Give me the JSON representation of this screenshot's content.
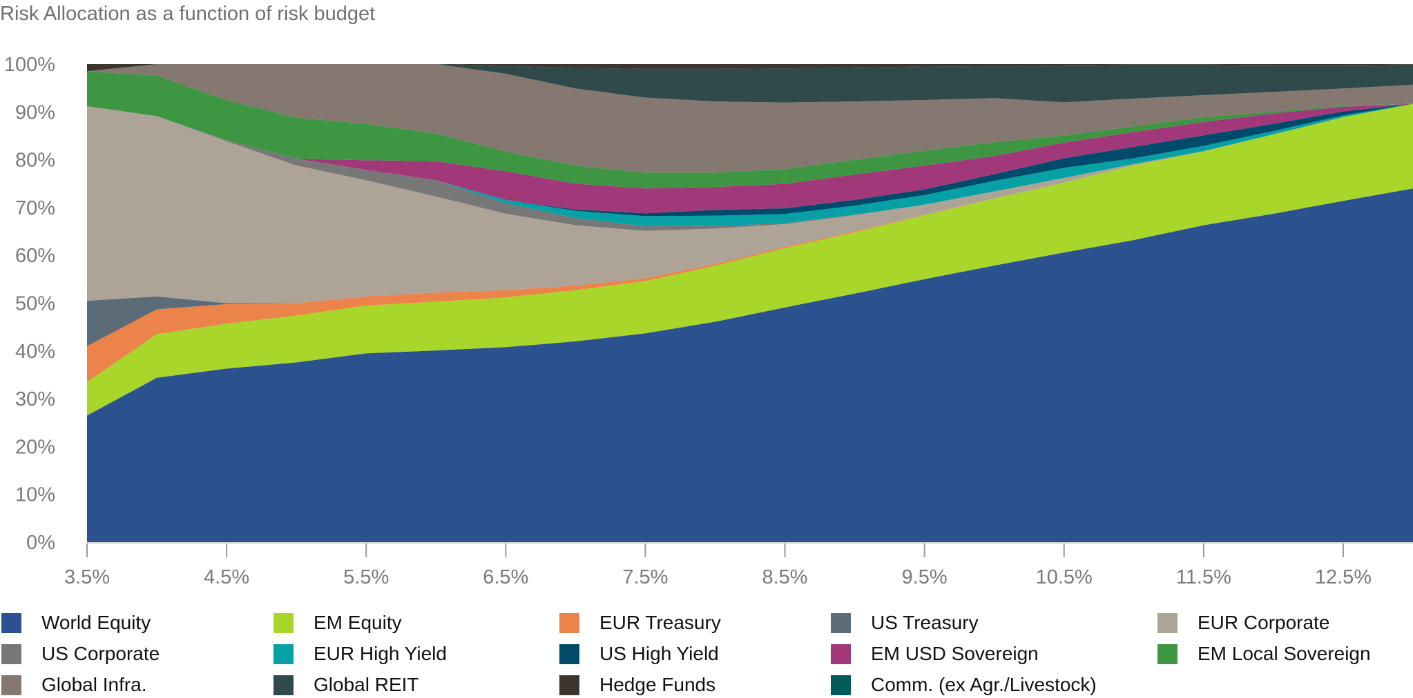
{
  "title": "Risk Allocation as a function of risk budget",
  "chart_data": {
    "type": "area",
    "stacked": true,
    "title": "Risk Allocation as a function of risk budget",
    "xlabel": "",
    "ylabel": "",
    "x": [
      3.5,
      4.0,
      4.5,
      5.0,
      5.5,
      6.0,
      6.5,
      7.0,
      7.5,
      8.0,
      8.5,
      9.0,
      9.5,
      10.0,
      10.5,
      11.0,
      11.5,
      12.0,
      12.5,
      13.0
    ],
    "xlim": [
      3.5,
      13.0
    ],
    "ylim": [
      0,
      100
    ],
    "x_tick_labels": [
      "3.5%",
      "4.5%",
      "5.5%",
      "6.5%",
      "7.5%",
      "8.5%",
      "9.5%",
      "10.5%",
      "11.5%",
      "12.5%"
    ],
    "x_tick_values": [
      3.5,
      4.5,
      5.5,
      6.5,
      7.5,
      8.5,
      9.5,
      10.5,
      11.5,
      12.5
    ],
    "y_tick_labels": [
      "0%",
      "10%",
      "20%",
      "30%",
      "40%",
      "50%",
      "60%",
      "70%",
      "80%",
      "90%",
      "100%"
    ],
    "y_tick_values": [
      0,
      10,
      20,
      30,
      40,
      50,
      60,
      70,
      80,
      90,
      100
    ],
    "grid": false,
    "legend_position": "bottom",
    "series": [
      {
        "name": "World Equity",
        "color": "#2b528e",
        "values": [
          26.5,
          34.4,
          36.3,
          37.6,
          39.5,
          40.1,
          40.8,
          42.0,
          43.7,
          46.1,
          49.0,
          52.0,
          55.0,
          57.8,
          60.6,
          63.2,
          66.3,
          68.7,
          71.4,
          74.0
        ]
      },
      {
        "name": "EM Equity",
        "color": "#a9d62b",
        "values": [
          7.0,
          9.1,
          9.4,
          9.8,
          10.0,
          10.2,
          10.4,
          10.7,
          10.9,
          11.7,
          12.4,
          12.8,
          13.4,
          14.0,
          14.6,
          15.6,
          15.4,
          16.6,
          17.5,
          17.7
        ]
      },
      {
        "name": "EUR Treasury",
        "color": "#ec834a",
        "values": [
          7.5,
          5.2,
          4.1,
          2.6,
          1.9,
          1.9,
          1.5,
          1.0,
          0.6,
          0.4,
          0.3,
          0.2,
          0.1,
          0,
          0,
          0,
          0,
          0,
          0,
          0
        ]
      },
      {
        "name": "US Treasury",
        "color": "#5b6c78",
        "values": [
          9.5,
          2.7,
          0.2,
          0,
          0,
          0,
          0,
          0,
          0,
          0,
          0,
          0,
          0,
          0,
          0,
          0,
          0,
          0,
          0,
          0
        ]
      },
      {
        "name": "EUR Corporate",
        "color": "#aea397",
        "values": [
          40.7,
          37.7,
          33.9,
          28.8,
          24.3,
          20.1,
          16.0,
          12.6,
          9.9,
          7.4,
          4.7,
          3.4,
          2.1,
          1.5,
          1.0,
          0.3,
          0.1,
          0,
          0,
          0
        ]
      },
      {
        "name": "US Corporate",
        "color": "#777777",
        "values": [
          0,
          0,
          0.2,
          1.4,
          2.2,
          3.4,
          2.2,
          1.5,
          1.0,
          0.5,
          0.2,
          0.1,
          0,
          0,
          0,
          0,
          0,
          0,
          0,
          0
        ]
      },
      {
        "name": "EUR High Yield",
        "color": "#06a0a5",
        "values": [
          0,
          0,
          0,
          0,
          0,
          0,
          0.7,
          1.5,
          2.1,
          2.2,
          1.9,
          1.9,
          2.0,
          2.2,
          2.1,
          1.2,
          1.1,
          0.7,
          0.4,
          0
        ]
      },
      {
        "name": "US High Yield",
        "color": "#004a6b",
        "values": [
          0,
          0,
          0,
          0,
          0,
          0,
          0,
          0.3,
          0.6,
          1.2,
          1.2,
          1.2,
          1.2,
          1.4,
          2.0,
          2.4,
          2.2,
          1.5,
          0.8,
          0
        ]
      },
      {
        "name": "EM USD Sovereign",
        "color": "#a0387a",
        "values": [
          0,
          0,
          0,
          0,
          2.0,
          4.0,
          6.0,
          5.4,
          5.2,
          4.8,
          5.1,
          5.3,
          5.0,
          3.8,
          3.3,
          3.1,
          2.8,
          2.2,
          1.0,
          0
        ]
      },
      {
        "name": "EM Local Sovereign",
        "color": "#3e9643",
        "values": [
          7.3,
          8.5,
          8.4,
          8.6,
          7.6,
          5.8,
          4.1,
          3.8,
          3.3,
          3.0,
          3.1,
          3.1,
          3.1,
          2.9,
          1.5,
          1.2,
          1.0,
          0.4,
          0.2,
          0
        ]
      },
      {
        "name": "Global Infra.",
        "color": "#847870",
        "values": [
          0,
          2.4,
          7.5,
          11.2,
          12.5,
          14.5,
          16.3,
          16.1,
          15.7,
          14.9,
          13.9,
          12.2,
          10.6,
          9.2,
          6.9,
          5.8,
          4.6,
          4.1,
          3.6,
          4.0
        ]
      },
      {
        "name": "Global REIT",
        "color": "#30494b",
        "values": [
          0,
          0,
          0,
          0,
          0,
          0,
          1.7,
          4.3,
          6.0,
          6.8,
          7.1,
          7.1,
          7.0,
          6.7,
          7.8,
          7.1,
          6.4,
          5.6,
          4.9,
          4.2
        ]
      },
      {
        "name": "Hedge Funds",
        "color": "#3d3530",
        "values": [
          1.5,
          0,
          0,
          0,
          0,
          0,
          0.3,
          0.8,
          1.0,
          1.0,
          0.9,
          0.7,
          0.5,
          0.4,
          0.2,
          0.1,
          0.1,
          0.2,
          0.2,
          0.1
        ]
      },
      {
        "name": "Comm. (ex Agr./Livestock)",
        "color": "#005a5a",
        "values": [
          0,
          0,
          0,
          0,
          0,
          0,
          0,
          0,
          0,
          0,
          0,
          0,
          0,
          0,
          0,
          0,
          0,
          0,
          0,
          0
        ]
      }
    ]
  }
}
